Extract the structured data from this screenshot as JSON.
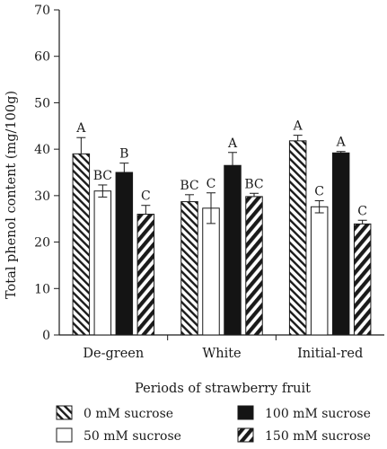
{
  "chart_data": {
    "type": "bar",
    "title": "",
    "xlabel": "Periods of strawberry fruit",
    "ylabel": "Total phenol content (mg/100g)",
    "ylim": [
      0,
      70
    ],
    "yticks": [
      "0",
      "10",
      "20",
      "30",
      "40",
      "50",
      "60",
      "70"
    ],
    "grid": false,
    "legend_position": "bottom",
    "categories": [
      "De-green",
      "White",
      "Initial-red"
    ],
    "series": [
      {
        "name": "0 mM sucrose",
        "pattern": "diagonal-hatch",
        "values": [
          39.0,
          28.7,
          41.8
        ],
        "errors": [
          3.5,
          1.5,
          1.2
        ],
        "labels": [
          "A",
          "BC",
          "A"
        ]
      },
      {
        "name": "50 mM sucrose",
        "pattern": "white",
        "values": [
          31.0,
          27.3,
          27.6
        ],
        "errors": [
          1.3,
          3.3,
          1.3
        ],
        "labels": [
          "BC",
          "C",
          "C"
        ]
      },
      {
        "name": "100 mM sucrose",
        "pattern": "black",
        "values": [
          35.0,
          36.5,
          39.2
        ],
        "errors": [
          2.0,
          2.8,
          0.3
        ],
        "labels": [
          "B",
          "A",
          "A"
        ]
      },
      {
        "name": "150 mM sucrose",
        "pattern": "zigzag",
        "values": [
          26.0,
          29.8,
          23.9
        ],
        "errors": [
          1.9,
          0.7,
          0.8
        ],
        "labels": [
          "C",
          "BC",
          "C"
        ]
      }
    ]
  }
}
